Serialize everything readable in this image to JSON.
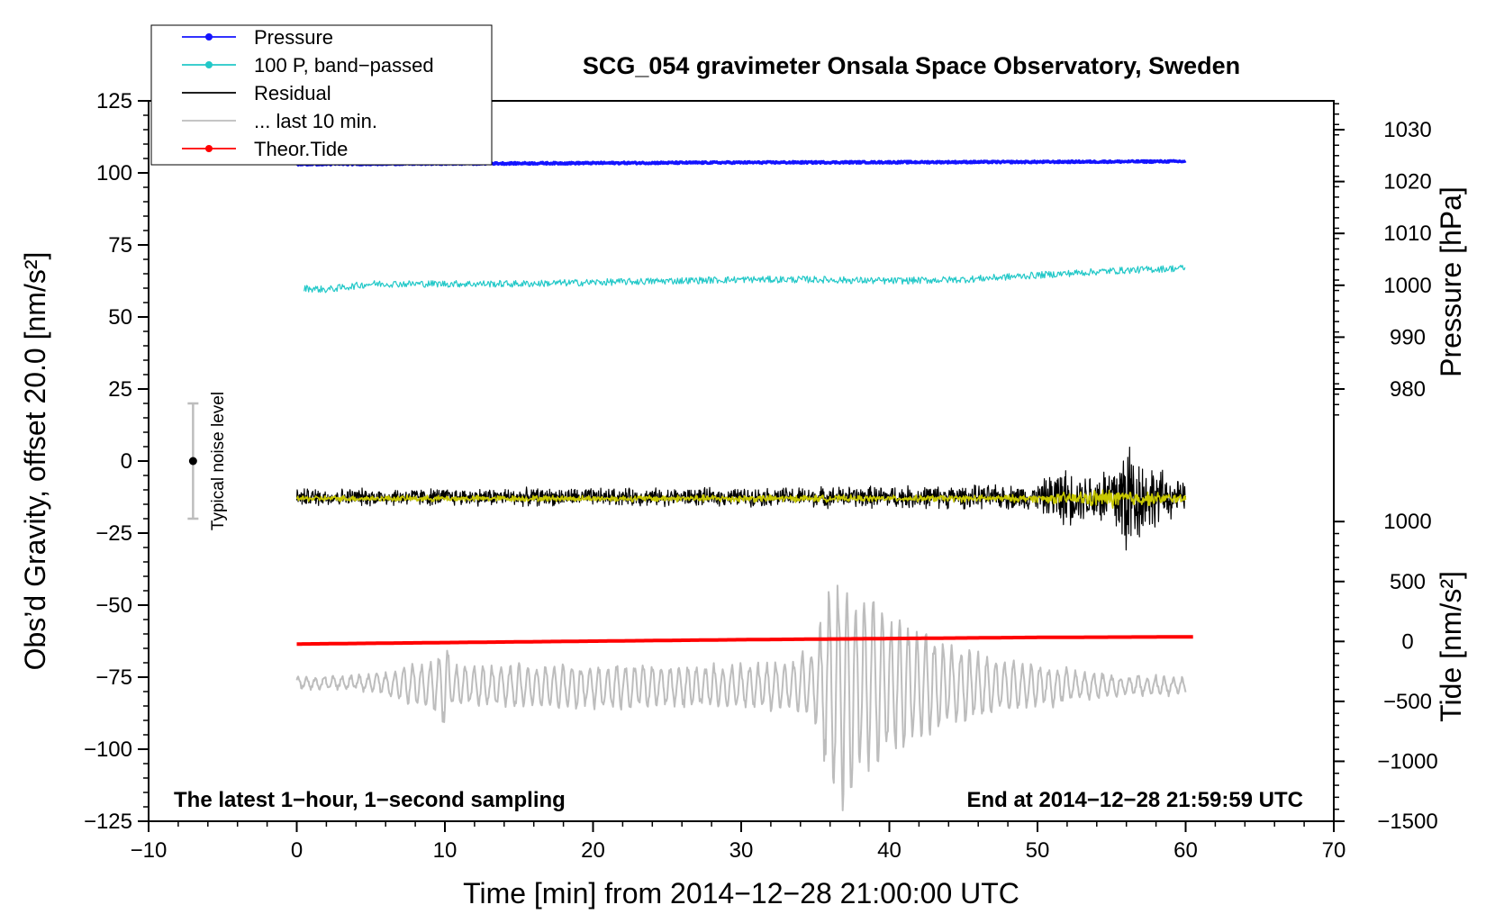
{
  "chart_data": {
    "type": "line",
    "title": "SCG_054 gravimeter Onsala Space Observatory, Sweden",
    "xlabel": "Time [min] from 2014−12−28 21:00:00 UTC",
    "ylabel_left": "Obs’d Gravity, offset 20.0 [nm/s²]",
    "ylabel_right_top": "Pressure [hPa]",
    "ylabel_right_bottom": "Tide [nm/s²]",
    "xlim": [
      -10,
      70
    ],
    "ylim": [
      -125,
      125
    ],
    "x_ticks": [
      -10,
      0,
      10,
      20,
      30,
      40,
      50,
      60,
      70
    ],
    "x_tick_labels": [
      "−10",
      "0",
      "10",
      "20",
      "30",
      "40",
      "50",
      "60",
      "70"
    ],
    "y_ticks": [
      -125,
      -100,
      -75,
      -50,
      -25,
      0,
      25,
      50,
      75,
      100,
      125
    ],
    "y_tick_labels": [
      "−125",
      "−100",
      "−75",
      "−50",
      "−25",
      "0",
      "25",
      "50",
      "75",
      "100",
      "125"
    ],
    "pressure_axis": {
      "ticks": [
        980,
        990,
        1000,
        1010,
        1020,
        1030
      ],
      "tick_labels": [
        "980",
        "990",
        "1000",
        "1010",
        "1020",
        "1030"
      ],
      "map_left": [
        [
          980,
          25
        ],
        [
          1030,
          115
        ]
      ]
    },
    "tide_axis": {
      "ticks": [
        -1500,
        -1000,
        -500,
        0,
        500,
        1000
      ],
      "tick_labels": [
        "−1500",
        "−1000",
        "−500",
        "0",
        "500",
        "1000"
      ],
      "map_left": [
        [
          -1500,
          -125
        ],
        [
          1000,
          -21
        ]
      ]
    },
    "legend": {
      "position": "top-left",
      "entries": [
        {
          "label": "Pressure",
          "color": "#1414ff",
          "marker": true
        },
        {
          "label": "100 P, band−passed",
          "color": "#22c8c8",
          "marker": true
        },
        {
          "label": "Residual",
          "color": "#000000",
          "marker": false
        },
        {
          "label": "... last 10 min.",
          "color": "#bdbdbd",
          "marker": false
        },
        {
          "label": "Theor.Tide",
          "color": "#ff0000",
          "marker": true
        }
      ]
    },
    "annotations": {
      "bottom_left": "The latest 1−hour, 1−second sampling",
      "bottom_right": "End at 2014−12−28 21:59:59 UTC",
      "noise_label": "Typical noise level",
      "noise_bar": {
        "x": -7,
        "center": 0,
        "low": -20,
        "high": 20
      }
    },
    "series": [
      {
        "name": "Pressure",
        "color": "#1414ff",
        "x": [
          0,
          10,
          20,
          30,
          40,
          50,
          60
        ],
        "y": [
          103.0,
          103.2,
          103.4,
          103.6,
          103.7,
          103.8,
          104.0
        ],
        "noise": 0.3
      },
      {
        "name": "100 P, band−passed",
        "color": "#22c8c8",
        "x": [
          0.5,
          2,
          5,
          10,
          15,
          20,
          25,
          30,
          35,
          40,
          45,
          50,
          55,
          60
        ],
        "y": [
          60,
          59.5,
          61.5,
          61.5,
          61.5,
          62,
          62.5,
          63,
          63,
          62.5,
          63,
          64.5,
          66,
          67
        ],
        "noise": 1.2
      },
      {
        "name": "Residual",
        "color": "#000000",
        "x": [
          0,
          10,
          20,
          30,
          40,
          45,
          50,
          51.5,
          53,
          55,
          56,
          57,
          58,
          60
        ],
        "y": [
          -12.5,
          -12.5,
          -12.5,
          -12.5,
          -12.5,
          -12.5,
          -12.5,
          -12.5,
          -12.5,
          -12.5,
          -12.5,
          -12.5,
          -12.5,
          -12.5
        ],
        "amp": [
          3.5,
          3.5,
          3.5,
          3.5,
          4.5,
          4.5,
          5,
          12,
          9,
          14,
          28,
          16,
          12,
          5
        ],
        "noise": 1
      },
      {
        "name": "Residual (smoothed)",
        "color": "#c8c800",
        "x": [
          0,
          10,
          20,
          30,
          40,
          50,
          55,
          60
        ],
        "y": [
          -13,
          -13,
          -13,
          -13,
          -13,
          -13,
          -13,
          -13
        ],
        "amp": [
          1.2,
          1.2,
          1.2,
          1.5,
          1.2,
          1.5,
          4,
          1.5
        ],
        "noise": 1
      },
      {
        "name": "... last 10 min.",
        "color": "#bdbdbd",
        "x": [
          0,
          5,
          9.5,
          10,
          10.5,
          15,
          20,
          25,
          30,
          33,
          35,
          36,
          37,
          38,
          40,
          42,
          45,
          48,
          50,
          55,
          60
        ],
        "y": [
          -77,
          -77,
          -78,
          -78,
          -78,
          -78,
          -78,
          -78,
          -78,
          -78,
          -78,
          -78,
          -78,
          -78,
          -78,
          -78,
          -78,
          -78,
          -78,
          -78,
          -78
        ],
        "amp": [
          2,
          3,
          10,
          18,
          8,
          8,
          8,
          8,
          8,
          9,
          14,
          38,
          45,
          35,
          26,
          20,
          13,
          10,
          8,
          4,
          3
        ],
        "noise": 1
      },
      {
        "name": "Theor.Tide",
        "color": "#ff0000",
        "x": [
          0,
          10,
          20,
          30,
          40,
          50,
          60.5
        ],
        "y": [
          -63.5,
          -63,
          -62.5,
          -62,
          -61.6,
          -61.2,
          -61.0
        ],
        "noise": 0
      }
    ]
  }
}
